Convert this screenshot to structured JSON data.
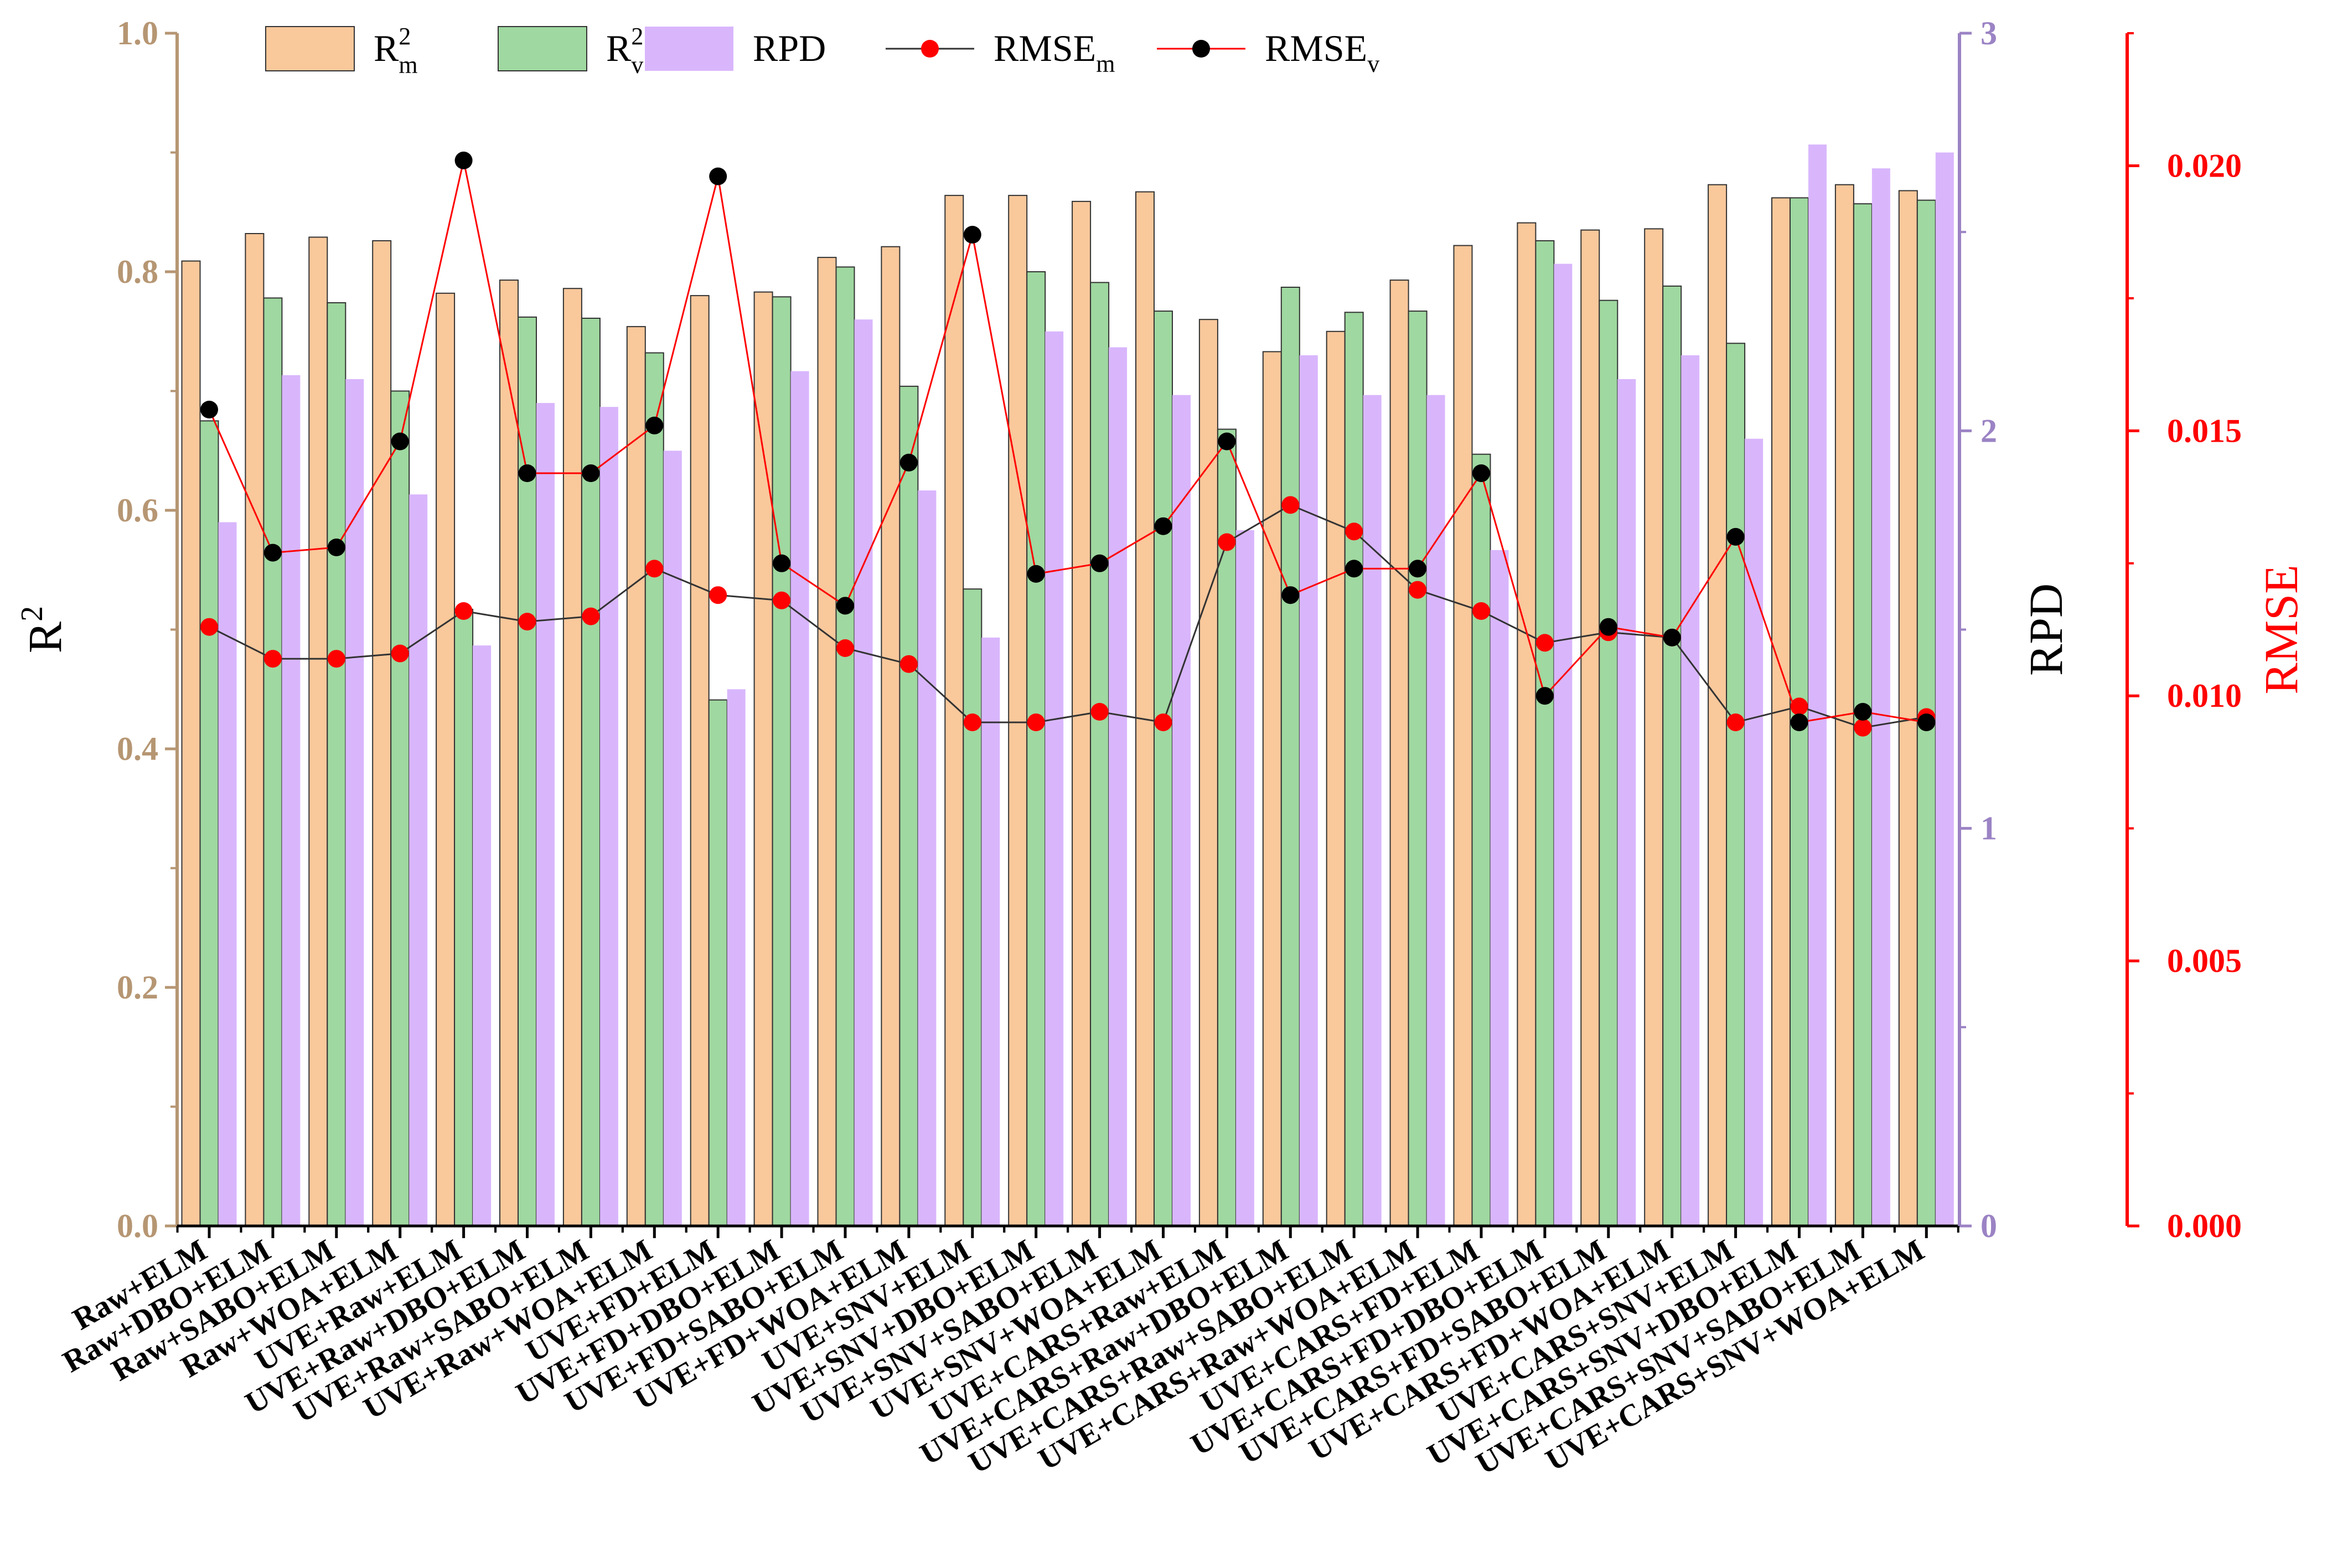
{
  "chart_data": {
    "type": "bar",
    "categories": [
      "Raw+ELM",
      "Raw+DBO+ELM",
      "Raw+SABO+ELM",
      "Raw+WOA+ELM",
      "UVE+Raw+ELM",
      "UVE+Raw+DBO+ELM",
      "UVE+Raw+SABO+ELM",
      "UVE+Raw+WOA+ELM",
      "UVE+FD+ELM",
      "UVE+FD+DBO+ELM",
      "UVE+FD+SABO+ELM",
      "UVE+FD+WOA+ELM",
      "UVE+SNV+ELM",
      "UVE+SNV+DBO+ELM",
      "UVE+SNV+SABO+ELM",
      "UVE+SNV+WOA+ELM",
      "UVE+CARS+Raw+ELM",
      "UVE+CARS+Raw+DBO+ELM",
      "UVE+CARS+Raw+SABO+ELM",
      "UVE+CARS+Raw+WOA+ELM",
      "UVE+CARS+FD+ELM",
      "UVE+CARS+FD+DBO+ELM",
      "UVE+CARS+FD+SABO+ELM",
      "UVE+CARS+FD+WOA+ELM",
      "UVE+CARS+SNV+ELM",
      "UVE+CARS+SNV+DBO+ELM",
      "UVE+CARS+SNV+SABO+ELM",
      "UVE+CARS+SNV+WOA+ELM"
    ],
    "series": [
      {
        "name": "R2m",
        "label_main": "R",
        "label_sup": "2",
        "label_sub": "m",
        "kind": "bar",
        "axis": "R2",
        "color": "#f9c89b",
        "values": [
          0.809,
          0.832,
          0.829,
          0.826,
          0.782,
          0.793,
          0.786,
          0.754,
          0.78,
          0.783,
          0.812,
          0.821,
          0.864,
          0.864,
          0.859,
          0.867,
          0.76,
          0.733,
          0.75,
          0.793,
          0.822,
          0.841,
          0.835,
          0.836,
          0.873,
          0.862,
          0.873,
          0.868
        ]
      },
      {
        "name": "R2v",
        "label_main": "R",
        "label_sup": "2",
        "label_sub": "v",
        "kind": "bar",
        "axis": "R2",
        "color": "#9fd8a0",
        "values": [
          0.675,
          0.778,
          0.774,
          0.7,
          0.517,
          0.762,
          0.761,
          0.732,
          0.441,
          0.779,
          0.804,
          0.704,
          0.534,
          0.8,
          0.791,
          0.767,
          0.668,
          0.787,
          0.766,
          0.767,
          0.647,
          0.826,
          0.776,
          0.788,
          0.74,
          0.862,
          0.857,
          0.86
        ]
      },
      {
        "name": "RPD",
        "label_main": "RPD",
        "label_sup": "",
        "label_sub": "",
        "kind": "bar",
        "axis": "RPD",
        "color": "#d9b6fc",
        "values": [
          1.77,
          2.14,
          2.13,
          1.84,
          1.46,
          2.07,
          2.06,
          1.95,
          1.35,
          2.15,
          2.28,
          1.85,
          1.48,
          2.25,
          2.21,
          2.09,
          1.75,
          2.19,
          2.09,
          2.09,
          1.7,
          2.42,
          2.13,
          2.19,
          1.98,
          2.72,
          2.66,
          2.7
        ]
      },
      {
        "name": "RMSEm",
        "label_main": "RMSE",
        "label_sup": "",
        "label_sub": "m",
        "kind": "line",
        "axis": "RMSE",
        "color": "#ff0000",
        "marker": "#ff0000",
        "line_color": "#333333",
        "values": [
          0.0113,
          0.0107,
          0.0107,
          0.0108,
          0.0116,
          0.0114,
          0.0115,
          0.0124,
          0.0119,
          0.0118,
          0.0109,
          0.0106,
          0.0095,
          0.0095,
          0.0097,
          0.0095,
          0.0129,
          0.0136,
          0.0131,
          0.012,
          0.0116,
          0.011,
          0.0112,
          0.0111,
          0.0095,
          0.0098,
          0.0094,
          0.0096
        ]
      },
      {
        "name": "RMSEv",
        "label_main": "RMSE",
        "label_sup": "",
        "label_sub": "v",
        "kind": "line",
        "axis": "RMSE",
        "color": "#000000",
        "marker": "#000000",
        "line_color": "#ff0000",
        "values": [
          0.0154,
          0.0127,
          0.0128,
          0.0148,
          0.0201,
          0.0142,
          0.0142,
          0.0151,
          0.0198,
          0.0125,
          0.0117,
          0.0144,
          0.0187,
          0.0123,
          0.0125,
          0.0132,
          0.0148,
          0.0119,
          0.0124,
          0.0124,
          0.0142,
          0.01,
          0.0113,
          0.0111,
          0.013,
          0.0095,
          0.0097,
          0.0095
        ]
      }
    ],
    "axes": {
      "R2": {
        "title_main": "R",
        "title_sup": "2",
        "range": [
          0,
          1.0
        ],
        "ticks": [
          "0.0",
          "0.2",
          "0.4",
          "0.6",
          "0.8",
          "1.0"
        ],
        "color": "#b69673"
      },
      "RPD": {
        "title": "RPD",
        "range": [
          0,
          3
        ],
        "ticks": [
          "0",
          "1",
          "2",
          "3"
        ],
        "color": "#9b83c4"
      },
      "RMSE": {
        "title": "RMSE",
        "range": [
          0,
          0.0225
        ],
        "ticks": [
          "0.000",
          "0.005",
          "0.010",
          "0.015",
          "0.020"
        ],
        "color": "#ff0000"
      }
    },
    "grid": false,
    "legend_position": "top"
  }
}
